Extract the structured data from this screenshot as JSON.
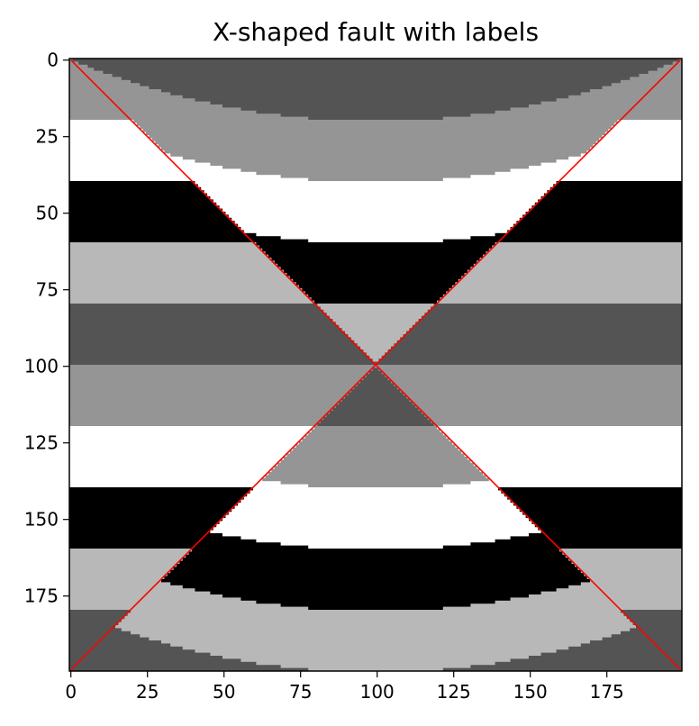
{
  "chart_data": {
    "type": "heatmap",
    "title": "X-shaped fault with labels",
    "xlabel": "",
    "ylabel": "",
    "grid_size": [
      200,
      200
    ],
    "xlim": [
      0,
      199
    ],
    "ylim": [
      199,
      0
    ],
    "x_ticks": [
      0,
      25,
      50,
      75,
      100,
      125,
      150,
      175
    ],
    "y_ticks": [
      0,
      25,
      50,
      75,
      100,
      125,
      150,
      175
    ],
    "x_tick_labels": [
      "0",
      "25",
      "50",
      "75",
      "100",
      "125",
      "150",
      "175"
    ],
    "y_tick_labels": [
      "0",
      "25",
      "50",
      "75",
      "100",
      "125",
      "150",
      "175"
    ],
    "colormap": "gray",
    "grid": false,
    "layer_thickness": 20,
    "layer_shades": [
      "#959595",
      "#ffffff",
      "#000000",
      "#b8b8b8",
      "#545454"
    ],
    "inner_layer_bend": 20,
    "fault_lines": [
      {
        "x": [
          0,
          199
        ],
        "y": [
          0,
          199
        ]
      },
      {
        "x": [
          199,
          0
        ],
        "y": [
          0,
          199
        ]
      }
    ],
    "colors": {
      "fault_line": "#ff0000",
      "axes_frame": "#000000",
      "background": "#ffffff"
    }
  }
}
